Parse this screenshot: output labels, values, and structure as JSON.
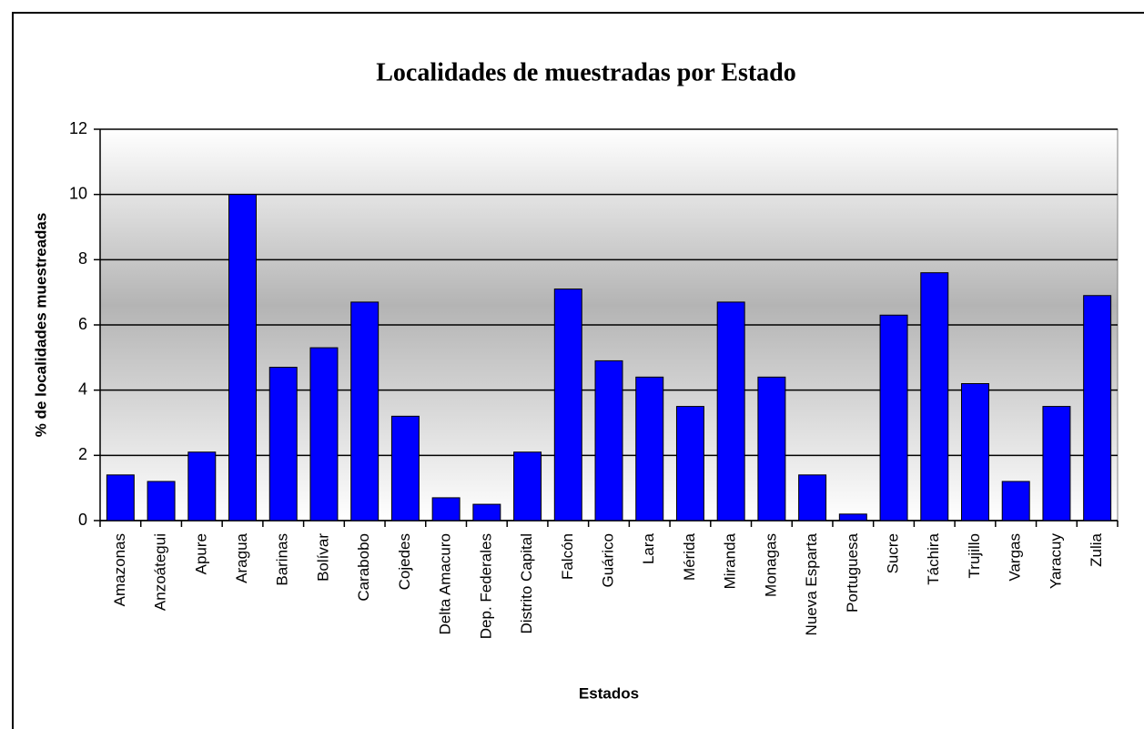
{
  "chart_data": {
    "type": "bar",
    "title": "Localidades de muestradas por Estado",
    "x_label": "Estados",
    "y_label": "% de localidades  muestreadas",
    "categories": [
      "Amazonas",
      "Anzoátegui",
      "Apure",
      "Aragua",
      "Barinas",
      "Bolívar",
      "Carabobo",
      "Cojedes",
      "Delta Amacuro",
      "Dep. Federales",
      "Distrito Capital",
      "Falcón",
      "Guárico",
      "Lara",
      "Mérida",
      "Miranda",
      "Monagas",
      "Nueva Esparta",
      "Portuguesa",
      "Sucre",
      "Táchira",
      "Trujillo",
      "Vargas",
      "Yaracuy",
      "Zulia"
    ],
    "values": [
      1.4,
      1.2,
      2.1,
      10.0,
      4.7,
      5.3,
      6.7,
      3.2,
      0.7,
      0.5,
      2.1,
      7.1,
      4.9,
      4.4,
      3.5,
      6.7,
      4.4,
      1.4,
      0.2,
      6.3,
      7.6,
      4.2,
      1.2,
      3.5,
      6.9
    ],
    "color": "#0000ff",
    "ylim": [
      0,
      12
    ],
    "yticks": [
      0,
      2,
      4,
      6,
      8,
      10,
      12
    ],
    "grid": true
  }
}
